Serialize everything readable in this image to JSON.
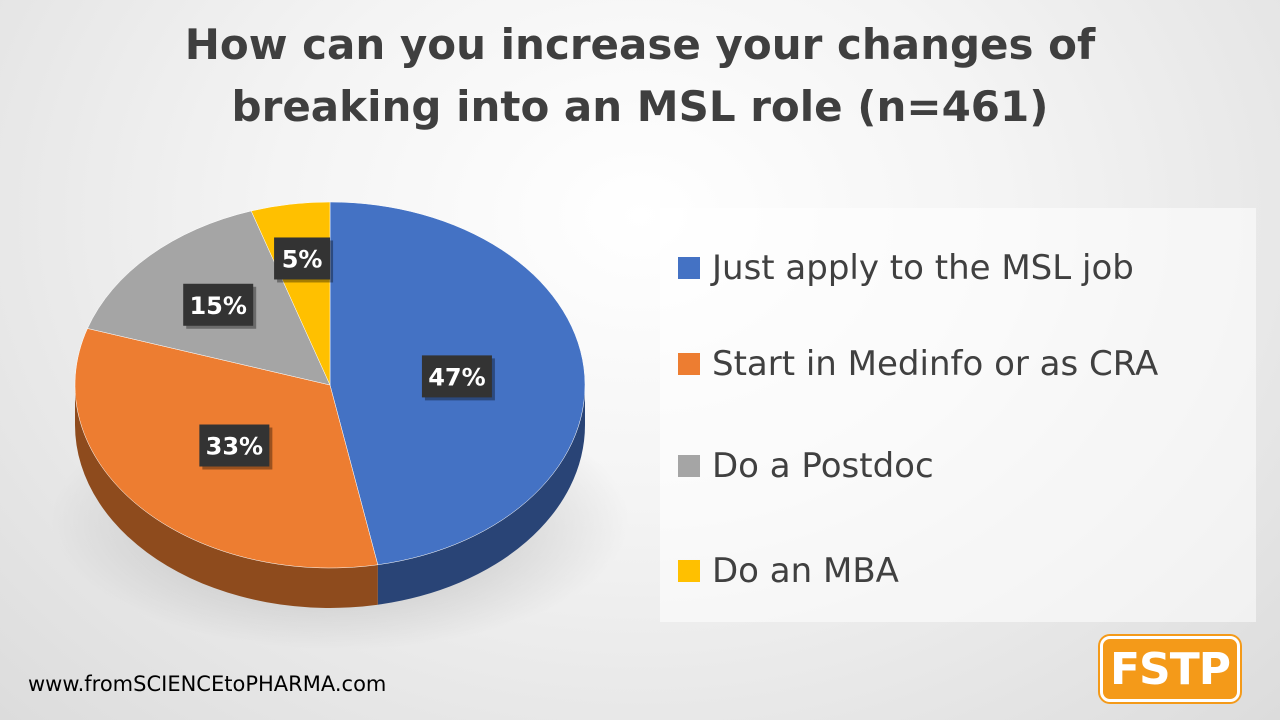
{
  "title": {
    "line1": "How can you increase your changes of",
    "line2": "breaking into an MSL role (n=461)"
  },
  "chart_data": {
    "type": "pie",
    "title": "How can you increase your changes of breaking into an MSL role (n=461)",
    "categories": [
      "Just apply to the MSL job",
      "Start in Medinfo or as CRA",
      "Do a Postdoc",
      "Do an MBA"
    ],
    "values": [
      47,
      33,
      15,
      5
    ],
    "value_labels": [
      "47%",
      "33%",
      "15%",
      "5%"
    ],
    "colors": [
      "#4472c4",
      "#ed7d31",
      "#a5a5a5",
      "#ffc000"
    ],
    "legend_position": "right",
    "style": "3d-pie"
  },
  "footer": {
    "website": "www.fromSCIENCEtoPHARMA.com",
    "logo_text": "FSTP"
  }
}
